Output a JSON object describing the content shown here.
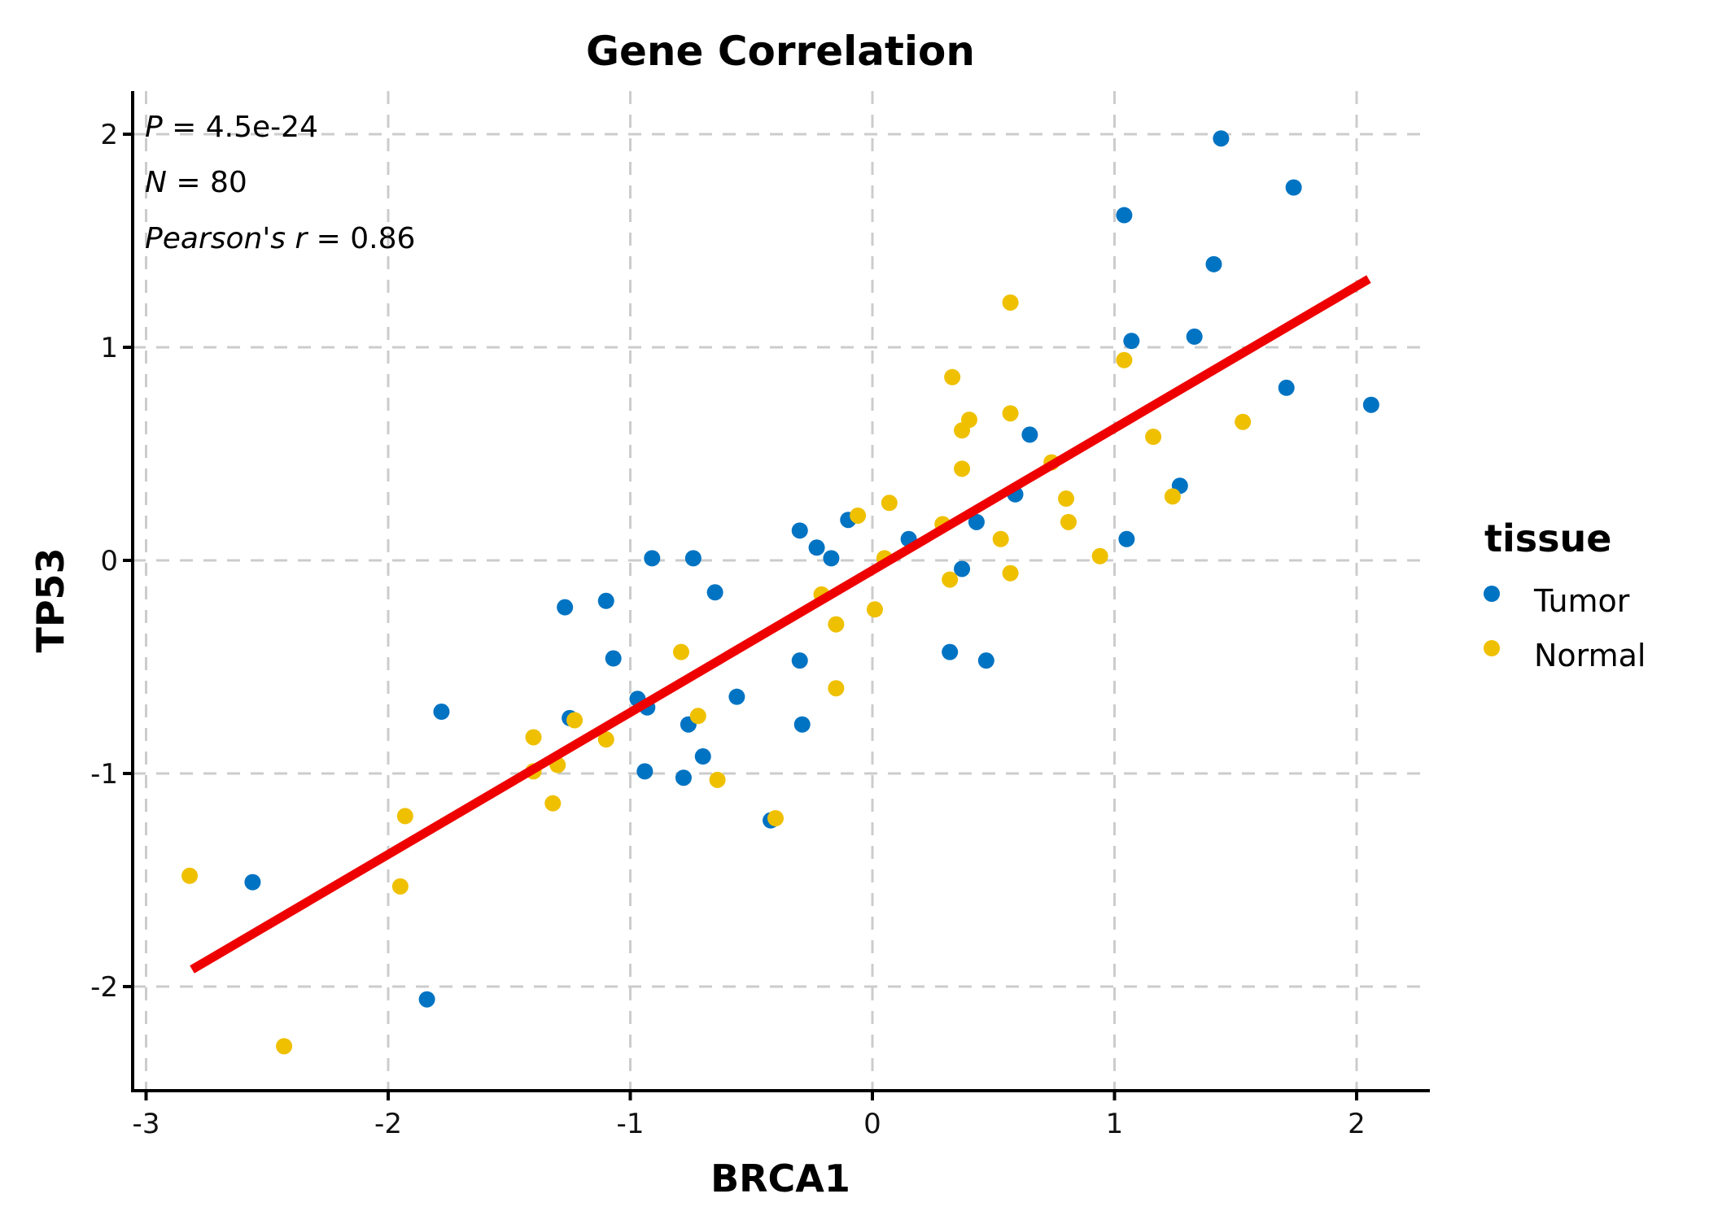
{
  "chart_data": {
    "type": "scatter",
    "title": "Gene Correlation",
    "xlabel": "BRCA1",
    "ylabel": "TP53",
    "xlim": [
      -3.06,
      2.3
    ],
    "ylim": [
      -2.49,
      2.2
    ],
    "x_ticks": [
      -3,
      -2,
      -1,
      0,
      1,
      2
    ],
    "y_ticks": [
      -2,
      -1,
      0,
      1,
      2
    ],
    "x_tick_labels": [
      "-3",
      "-2",
      "-1",
      "0",
      "1",
      "2"
    ],
    "y_tick_labels": [
      "-2",
      "-1",
      "0",
      "1",
      "2"
    ],
    "grid": true,
    "legend": {
      "title": "tissue",
      "placement": "right",
      "entries": [
        {
          "label": "Tumor",
          "color": "#0073C2"
        },
        {
          "label": "Normal",
          "color": "#EFC000"
        }
      ]
    },
    "annotations": {
      "p_label": "P",
      "p_value": " = 4.5e-24",
      "n_label": "N",
      "n_value": " = 80",
      "r_label": "Pearson's r",
      "r_value": " = 0.86"
    },
    "regression_line": {
      "color": "#EE0000",
      "x": [
        -2.81,
        2.05
      ],
      "y": [
        -1.92,
        1.32
      ]
    },
    "series": [
      {
        "name": "Tumor",
        "color": "#0073C2",
        "points": [
          [
            1.44,
            1.98
          ],
          [
            1.74,
            1.75
          ],
          [
            1.04,
            1.62
          ],
          [
            1.41,
            1.39
          ],
          [
            1.07,
            1.03
          ],
          [
            1.33,
            1.05
          ],
          [
            1.71,
            0.81
          ],
          [
            2.06,
            0.73
          ],
          [
            0.65,
            0.59
          ],
          [
            1.27,
            0.35
          ],
          [
            0.59,
            0.31
          ],
          [
            0.43,
            0.18
          ],
          [
            -0.1,
            0.19
          ],
          [
            0.15,
            0.1
          ],
          [
            1.05,
            0.1
          ],
          [
            -0.3,
            0.14
          ],
          [
            -0.23,
            0.06
          ],
          [
            -0.17,
            0.01
          ],
          [
            -0.91,
            0.01
          ],
          [
            -0.74,
            0.01
          ],
          [
            -0.65,
            -0.15
          ],
          [
            -1.1,
            -0.19
          ],
          [
            -1.27,
            -0.22
          ],
          [
            0.37,
            -0.04
          ],
          [
            -1.07,
            -0.46
          ],
          [
            0.32,
            -0.43
          ],
          [
            0.47,
            -0.47
          ],
          [
            -0.3,
            -0.47
          ],
          [
            -0.56,
            -0.64
          ],
          [
            -0.97,
            -0.65
          ],
          [
            -0.93,
            -0.69
          ],
          [
            -1.78,
            -0.71
          ],
          [
            -1.25,
            -0.74
          ],
          [
            -0.76,
            -0.77
          ],
          [
            -0.29,
            -0.77
          ],
          [
            -0.7,
            -0.92
          ],
          [
            -0.94,
            -0.99
          ],
          [
            -0.78,
            -1.02
          ],
          [
            -0.42,
            -1.22
          ],
          [
            -2.56,
            -1.51
          ],
          [
            -1.84,
            -2.06
          ]
        ]
      },
      {
        "name": "Normal",
        "color": "#EFC000",
        "points": [
          [
            0.57,
            1.21
          ],
          [
            1.04,
            0.94
          ],
          [
            0.33,
            0.86
          ],
          [
            0.57,
            0.69
          ],
          [
            0.4,
            0.66
          ],
          [
            0.37,
            0.61
          ],
          [
            1.53,
            0.65
          ],
          [
            1.16,
            0.58
          ],
          [
            0.74,
            0.46
          ],
          [
            0.37,
            0.43
          ],
          [
            0.8,
            0.29
          ],
          [
            1.24,
            0.3
          ],
          [
            0.07,
            0.27
          ],
          [
            -0.06,
            0.21
          ],
          [
            0.81,
            0.18
          ],
          [
            0.29,
            0.17
          ],
          [
            0.53,
            0.1
          ],
          [
            0.94,
            0.02
          ],
          [
            0.05,
            0.01
          ],
          [
            0.57,
            -0.06
          ],
          [
            0.32,
            -0.09
          ],
          [
            -0.21,
            -0.16
          ],
          [
            0.01,
            -0.23
          ],
          [
            -0.15,
            -0.3
          ],
          [
            -0.79,
            -0.43
          ],
          [
            -0.15,
            -0.6
          ],
          [
            -0.72,
            -0.73
          ],
          [
            -1.23,
            -0.75
          ],
          [
            -1.4,
            -0.83
          ],
          [
            -1.1,
            -0.84
          ],
          [
            -1.4,
            -0.99
          ],
          [
            -1.3,
            -0.96
          ],
          [
            -0.64,
            -1.03
          ],
          [
            -1.32,
            -1.14
          ],
          [
            -1.93,
            -1.2
          ],
          [
            -0.4,
            -1.21
          ],
          [
            -2.82,
            -1.48
          ],
          [
            -1.95,
            -1.53
          ],
          [
            -2.43,
            -2.28
          ]
        ]
      }
    ]
  }
}
